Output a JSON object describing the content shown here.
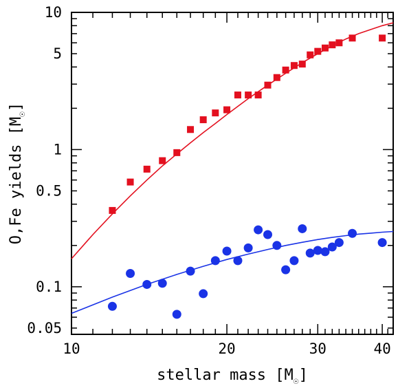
{
  "chart_data": {
    "type": "scatter",
    "xlabel": "stellar mass [M",
    "xlabel_suffix": "]",
    "ylabel": "O,Fe yields [M",
    "ylabel_suffix": "]",
    "solar_symbol": "☉",
    "xscale": "log",
    "yscale": "log",
    "xlim": [
      10,
      42
    ],
    "ylim": [
      0.045,
      10
    ],
    "x_ticks": [
      10,
      20,
      30,
      40
    ],
    "x_tick_labels": [
      "10",
      "20",
      "30",
      "40"
    ],
    "y_ticks": [
      0.05,
      0.1,
      0.5,
      1,
      5,
      10
    ],
    "y_tick_labels": [
      "0.05",
      "0.1",
      "0.5",
      "1",
      "5",
      "10"
    ],
    "series": [
      {
        "marker": "square",
        "color": "#e3101f",
        "points": [
          [
            12,
            0.36
          ],
          [
            13,
            0.58
          ],
          [
            14,
            0.72
          ],
          [
            15,
            0.83
          ],
          [
            16,
            0.95
          ],
          [
            17,
            1.4
          ],
          [
            18,
            1.65
          ],
          [
            19,
            1.85
          ],
          [
            20,
            1.95
          ],
          [
            21,
            2.5
          ],
          [
            22,
            2.5
          ],
          [
            23,
            2.5
          ],
          [
            24,
            2.95
          ],
          [
            25,
            3.35
          ],
          [
            26,
            3.8
          ],
          [
            27,
            4.1
          ],
          [
            28,
            4.2
          ],
          [
            29,
            4.9
          ],
          [
            30,
            5.2
          ],
          [
            31,
            5.5
          ],
          [
            32,
            5.8
          ],
          [
            33,
            6.0
          ],
          [
            35,
            6.5
          ],
          [
            40,
            6.5
          ]
        ],
        "fit": [
          [
            10,
            0.16
          ],
          [
            11,
            0.24
          ],
          [
            12,
            0.34
          ],
          [
            13,
            0.46
          ],
          [
            14,
            0.6
          ],
          [
            15,
            0.76
          ],
          [
            16,
            0.93
          ],
          [
            17,
            1.12
          ],
          [
            18,
            1.33
          ],
          [
            19,
            1.55
          ],
          [
            20,
            1.8
          ],
          [
            22,
            2.35
          ],
          [
            24,
            2.95
          ],
          [
            26,
            3.6
          ],
          [
            28,
            4.3
          ],
          [
            30,
            5.0
          ],
          [
            32,
            5.7
          ],
          [
            34,
            6.4
          ],
          [
            36,
            7.0
          ],
          [
            38,
            7.5
          ],
          [
            40,
            8.0
          ],
          [
            42,
            8.4
          ]
        ]
      },
      {
        "marker": "circle",
        "color": "#1a33e6",
        "points": [
          [
            12,
            0.072
          ],
          [
            13,
            0.125
          ],
          [
            14,
            0.104
          ],
          [
            15,
            0.106
          ],
          [
            16,
            0.063
          ],
          [
            17,
            0.13
          ],
          [
            18,
            0.089
          ],
          [
            19,
            0.155
          ],
          [
            20,
            0.182
          ],
          [
            21,
            0.155
          ],
          [
            22,
            0.192
          ],
          [
            23,
            0.26
          ],
          [
            24,
            0.24
          ],
          [
            25,
            0.2
          ],
          [
            26,
            0.133
          ],
          [
            27,
            0.155
          ],
          [
            28,
            0.265
          ],
          [
            29,
            0.176
          ],
          [
            30,
            0.184
          ],
          [
            31,
            0.18
          ],
          [
            32,
            0.195
          ],
          [
            33,
            0.21
          ],
          [
            35,
            0.245
          ],
          [
            40,
            0.21
          ]
        ],
        "fit": [
          [
            10,
            0.064
          ],
          [
            12,
            0.084
          ],
          [
            14,
            0.104
          ],
          [
            16,
            0.123
          ],
          [
            18,
            0.141
          ],
          [
            20,
            0.158
          ],
          [
            22,
            0.173
          ],
          [
            24,
            0.187
          ],
          [
            26,
            0.2
          ],
          [
            28,
            0.211
          ],
          [
            30,
            0.221
          ],
          [
            32,
            0.229
          ],
          [
            34,
            0.236
          ],
          [
            36,
            0.242
          ],
          [
            38,
            0.246
          ],
          [
            40,
            0.25
          ],
          [
            42,
            0.253
          ]
        ]
      }
    ]
  }
}
